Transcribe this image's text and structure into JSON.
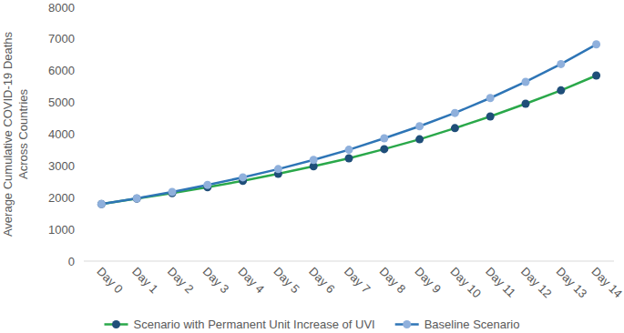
{
  "chart_data": {
    "type": "line",
    "y_label": "Average Cumulative COVID-19 Deaths Across Countries",
    "categories": [
      "Day 0",
      "Day 1",
      "Day 2",
      "Day 3",
      "Day 4",
      "Day 5",
      "Day 6",
      "Day 7",
      "Day 8",
      "Day 9",
      "Day 10",
      "Day 11",
      "Day 12",
      "Day 13",
      "Day 14"
    ],
    "series": [
      {
        "name": "Scenario with Permanent Unit Increase of UVI",
        "color": "#2aa84a",
        "marker": "circle",
        "values": [
          1800,
          1970,
          2140,
          2330,
          2530,
          2750,
          2990,
          3240,
          3530,
          3840,
          4190,
          4560,
          4960,
          5380,
          5850
        ]
      },
      {
        "name": "Baseline Scenario",
        "color": "#2e75b6",
        "marker": "circle",
        "values": [
          1800,
          1980,
          2180,
          2400,
          2640,
          2900,
          3190,
          3510,
          3870,
          4250,
          4670,
          5140,
          5650,
          6210,
          6830
        ]
      }
    ],
    "ylim": [
      0,
      8000
    ],
    "yticks": [
      0,
      1000,
      2000,
      3000,
      4000,
      5000,
      6000,
      7000,
      8000
    ],
    "grid": false,
    "legend": "bottom"
  }
}
